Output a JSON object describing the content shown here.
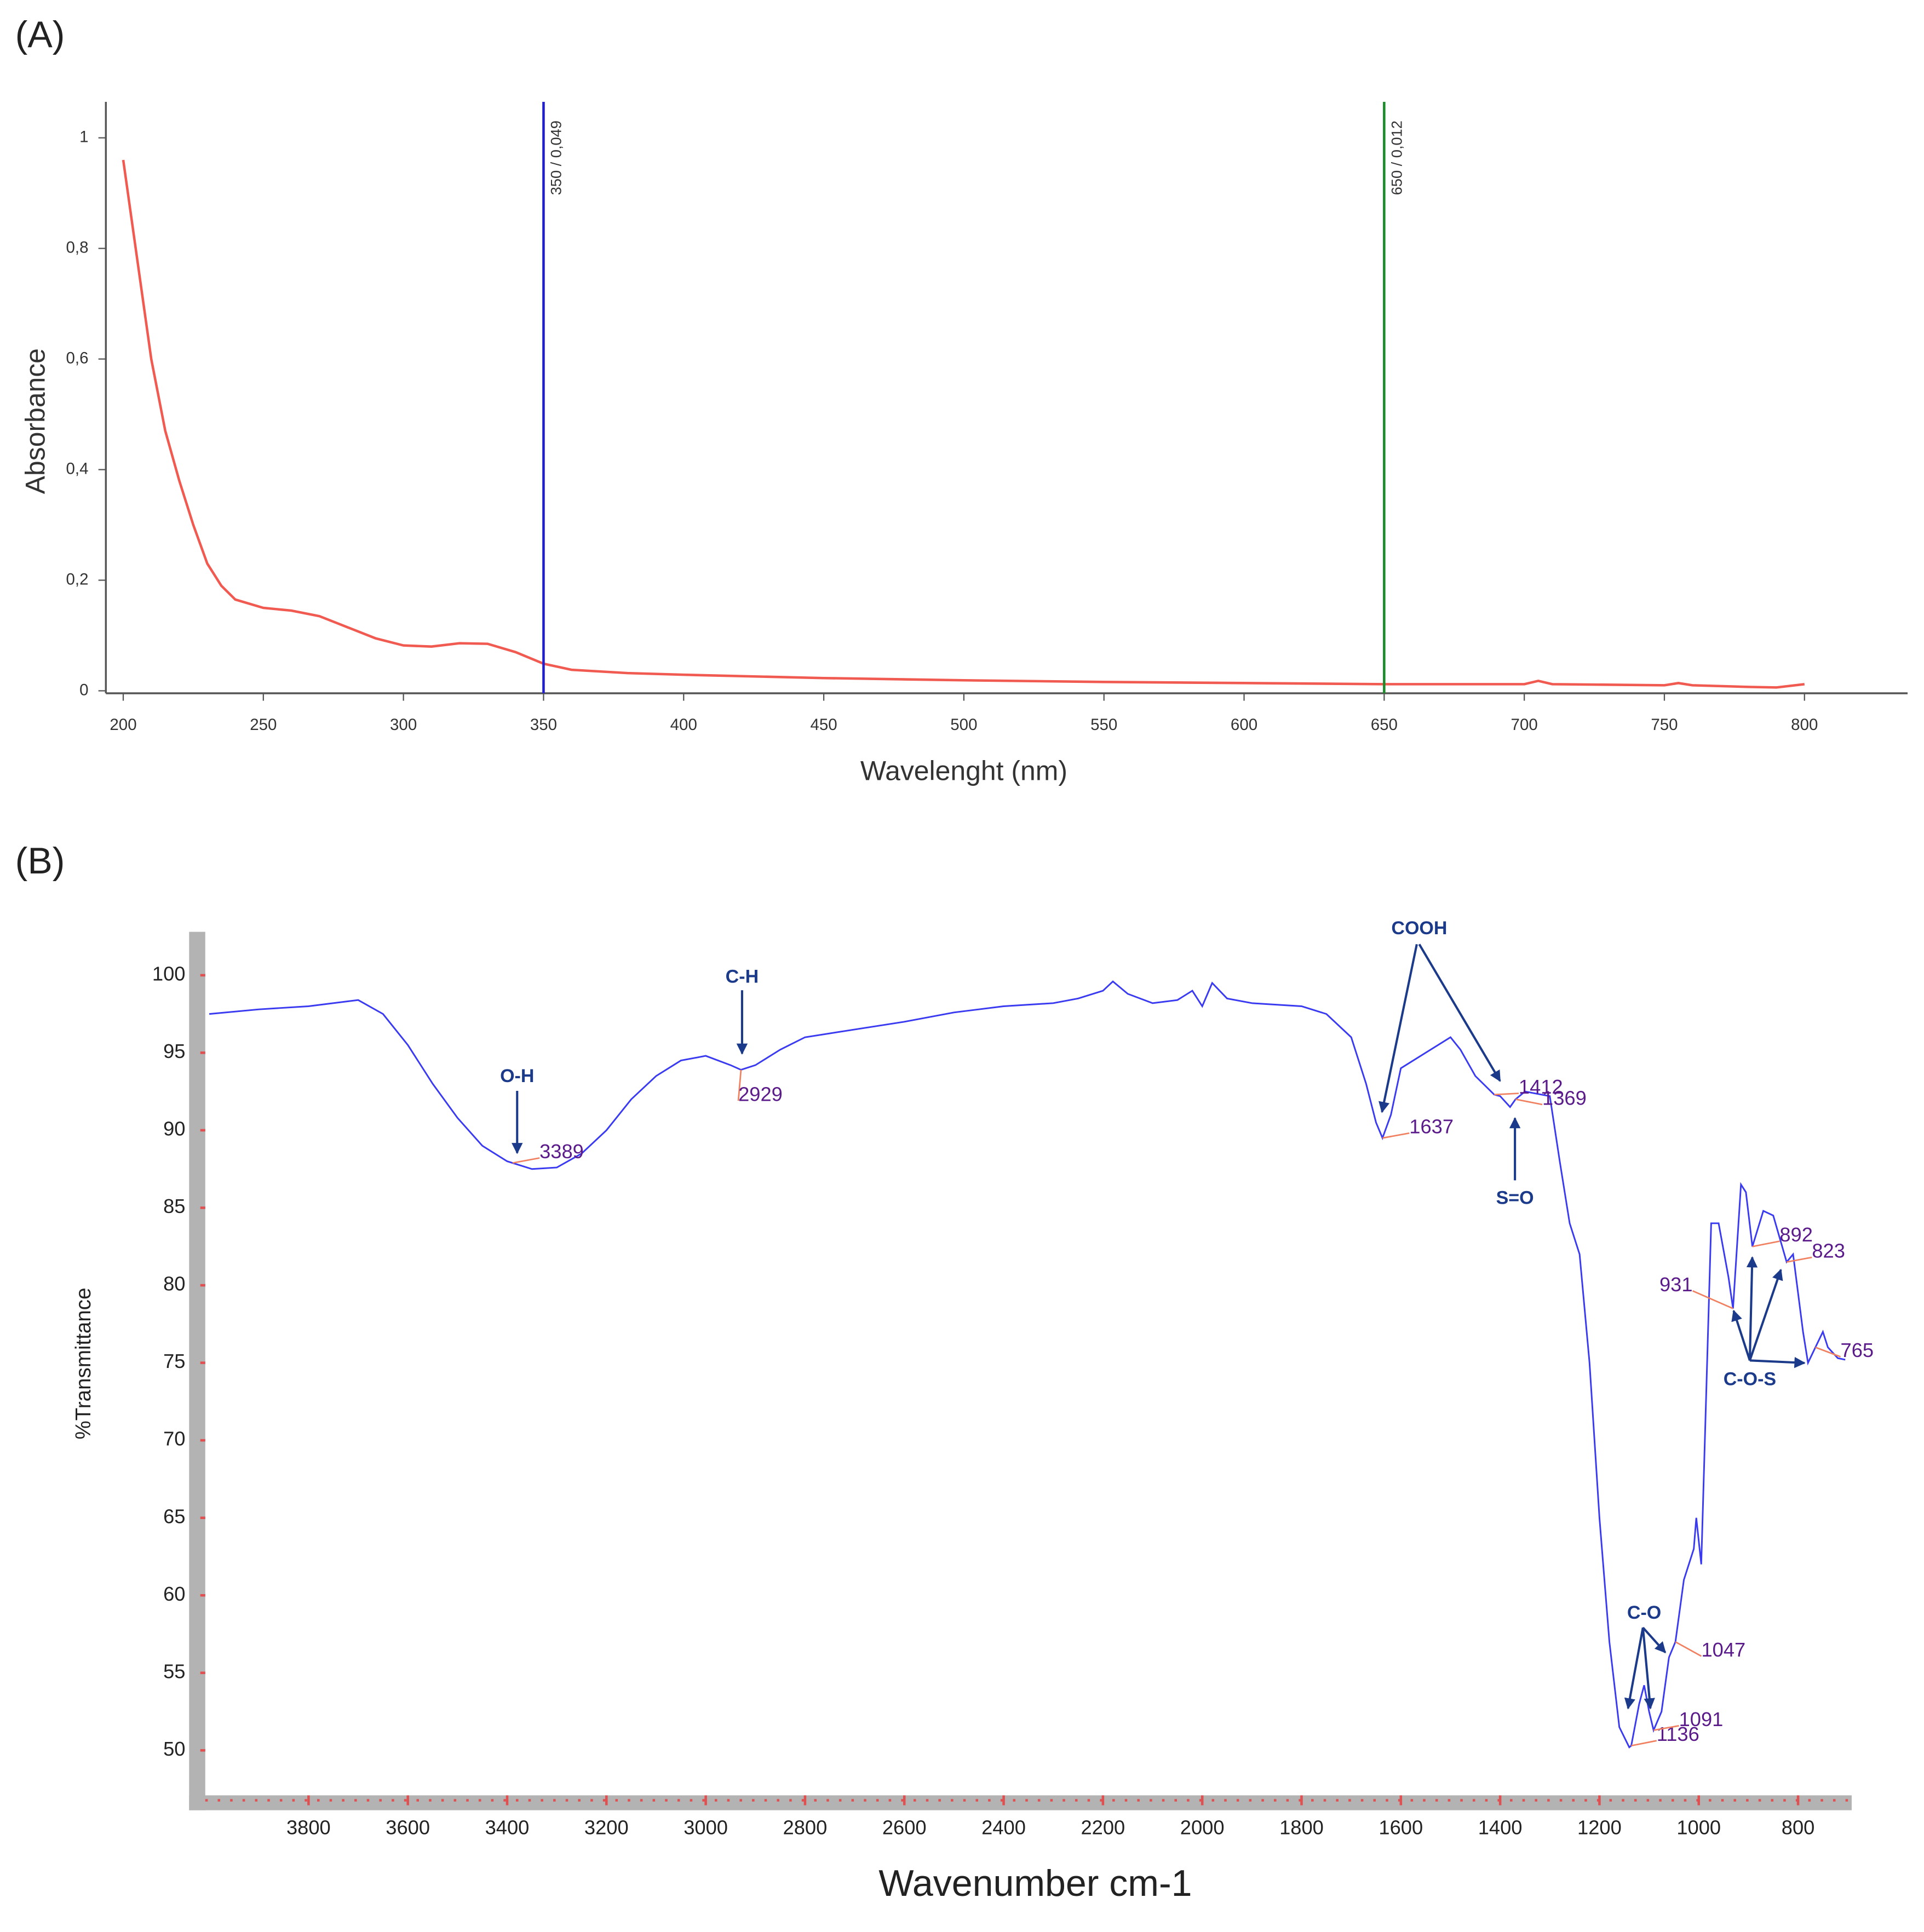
{
  "chart_data": [
    {
      "type": "line",
      "label": "(A)",
      "x_label": "Wavelenght (nm)",
      "y_label": "Absorbance",
      "color": "#f05a50",
      "x": [
        200,
        205,
        210,
        215,
        220,
        225,
        230,
        235,
        240,
        250,
        260,
        270,
        280,
        290,
        300,
        310,
        320,
        330,
        340,
        350,
        360,
        380,
        400,
        450,
        500,
        550,
        600,
        650,
        700,
        705,
        710,
        750,
        755,
        760,
        780,
        790,
        800
      ],
      "values": [
        0.96,
        0.78,
        0.6,
        0.47,
        0.38,
        0.3,
        0.23,
        0.19,
        0.165,
        0.15,
        0.145,
        0.135,
        0.115,
        0.095,
        0.082,
        0.08,
        0.086,
        0.085,
        0.07,
        0.049,
        0.038,
        0.032,
        0.029,
        0.023,
        0.019,
        0.016,
        0.014,
        0.012,
        0.012,
        0.018,
        0.012,
        0.01,
        0.014,
        0.01,
        0.007,
        0.006,
        0.012
      ],
      "xlim": [
        193.8,
        836.8
      ],
      "ylim": [
        0,
        1.065
      ],
      "xticks": [
        200,
        250,
        300,
        350,
        400,
        450,
        500,
        550,
        600,
        650,
        700,
        750,
        800
      ],
      "yticks": [
        0,
        {
          "value": 0.2,
          "label": "0,2"
        },
        {
          "value": 0.4,
          "label": "0,4"
        },
        {
          "value": 0.6,
          "label": "0,6"
        },
        {
          "value": 0.8,
          "label": "0,8"
        },
        1
      ],
      "markers": [
        {
          "x": 350,
          "label": "350 / 0,049",
          "color": "#1f1fd0"
        },
        {
          "x": 650,
          "label": "650 / 0,012",
          "color": "#1a8a2a"
        }
      ],
      "grid": false
    },
    {
      "type": "line",
      "label": "(B)",
      "x_label": "Wavenumber cm-1",
      "y_label": "%Transmittance",
      "color": "#3a3af0",
      "x": [
        4000,
        3900,
        3800,
        3700,
        3650,
        3600,
        3550,
        3500,
        3450,
        3400,
        3350,
        3300,
        3250,
        3200,
        3150,
        3100,
        3050,
        3000,
        2950,
        2929,
        2900,
        2850,
        2800,
        2700,
        2600,
        2500,
        2400,
        2300,
        2250,
        2200,
        2180,
        2150,
        2100,
        2050,
        2020,
        2000,
        1980,
        1950,
        1900,
        1800,
        1750,
        1700,
        1670,
        1650,
        1637,
        1620,
        1600,
        1550,
        1500,
        1480,
        1450,
        1412,
        1400,
        1380,
        1369,
        1350,
        1300,
        1280,
        1260,
        1240,
        1220,
        1200,
        1180,
        1160,
        1140,
        1136,
        1120,
        1110,
        1100,
        1091,
        1075,
        1060,
        1047,
        1030,
        1010,
        1005,
        995,
        975,
        960,
        940,
        931,
        915,
        905,
        892,
        870,
        850,
        823,
        810,
        790,
        780,
        765,
        750,
        740,
        720,
        705
      ],
      "values": [
        97.5,
        97.8,
        98,
        98.4,
        97.5,
        95.5,
        93,
        90.8,
        89,
        88,
        87.5,
        87.6,
        88.5,
        90,
        92,
        93.5,
        94.5,
        94.8,
        94.2,
        93.9,
        94.2,
        95.2,
        96,
        96.5,
        97,
        97.6,
        98,
        98.2,
        98.5,
        99,
        99.6,
        98.8,
        98.2,
        98.4,
        99,
        98,
        99.5,
        98.5,
        98.2,
        98,
        97.5,
        96,
        93,
        90.5,
        89.5,
        91,
        94,
        95,
        96,
        95.2,
        93.5,
        92.3,
        92.2,
        91.5,
        92,
        92.5,
        92.2,
        88,
        84,
        82,
        75,
        65,
        57,
        51.5,
        50.2,
        50.3,
        53,
        54.2,
        52.5,
        51.3,
        52.5,
        56,
        57,
        61,
        63,
        65,
        62,
        84,
        84,
        80.5,
        78.5,
        86.5,
        86,
        82.5,
        84.8,
        84.5,
        81.5,
        82,
        77,
        75,
        76,
        77,
        76,
        75.3,
        75.2
      ],
      "xlim": [
        4008,
        692
      ],
      "ylim": [
        47.1,
        102.8
      ],
      "xticks": [
        3800,
        3600,
        3400,
        3200,
        3000,
        2800,
        2600,
        2400,
        2200,
        2000,
        1800,
        1600,
        1400,
        1200,
        1000,
        800
      ],
      "yticks": [
        50,
        55,
        60,
        65,
        70,
        75,
        80,
        85,
        90,
        95,
        100
      ],
      "peaks": [
        3389,
        2929,
        1637,
        1412,
        1369,
        1136,
        1091,
        1047,
        931,
        892,
        823,
        765
      ],
      "annotations": [
        "O-H",
        "C-H",
        "COOH",
        "S=O",
        "C-O",
        "C-O-S"
      ],
      "grid": false
    }
  ]
}
